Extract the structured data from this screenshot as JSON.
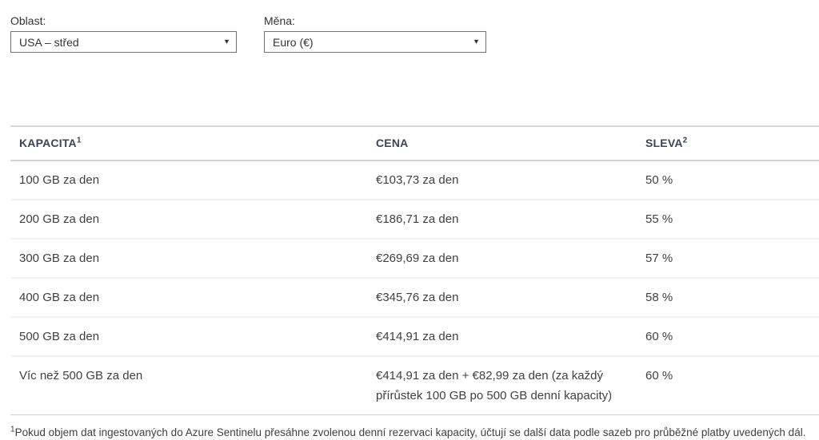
{
  "filters": {
    "region": {
      "label": "Oblast:",
      "value": "USA – střed"
    },
    "currency": {
      "label": "Měna:",
      "value": "Euro (€)"
    }
  },
  "icons": {
    "dropdown_caret": "▾"
  },
  "table": {
    "columns": [
      {
        "label": "KAPACITA",
        "superscript": "1"
      },
      {
        "label": "CENA",
        "superscript": ""
      },
      {
        "label": "SLEVA",
        "superscript": "2"
      }
    ],
    "rows": [
      {
        "capacity": "100 GB za den",
        "price": "€103,73 za den",
        "discount": "50 %"
      },
      {
        "capacity": "200 GB za den",
        "price": "€186,71 za den",
        "discount": "55 %"
      },
      {
        "capacity": "300 GB za den",
        "price": "€269,69 za den",
        "discount": "57 %"
      },
      {
        "capacity": "400 GB za den",
        "price": "€345,76 za den",
        "discount": "58 %"
      },
      {
        "capacity": "500 GB za den",
        "price": "€414,91 za den",
        "discount": "60 %"
      },
      {
        "capacity": "Víc než 500 GB za den",
        "price": "€414,91 za den + €82,99 za den (za každý přírůstek 100 GB po 500 GB denní kapacity)",
        "discount": "60 %"
      }
    ]
  },
  "footnote": {
    "superscript": "1",
    "text": "Pokud objem dat ingestovaných do Azure Sentinelu přesáhne zvolenou denní rezervaci kapacity, účtují se další data podle sazeb pro průběžné platby uvedených dál."
  },
  "colors": {
    "body_text": "#404040",
    "header_text": "#3a4557",
    "header_border": "#d6d6d6",
    "row_separator": "#f2f2f2",
    "select_border": "#737373"
  }
}
